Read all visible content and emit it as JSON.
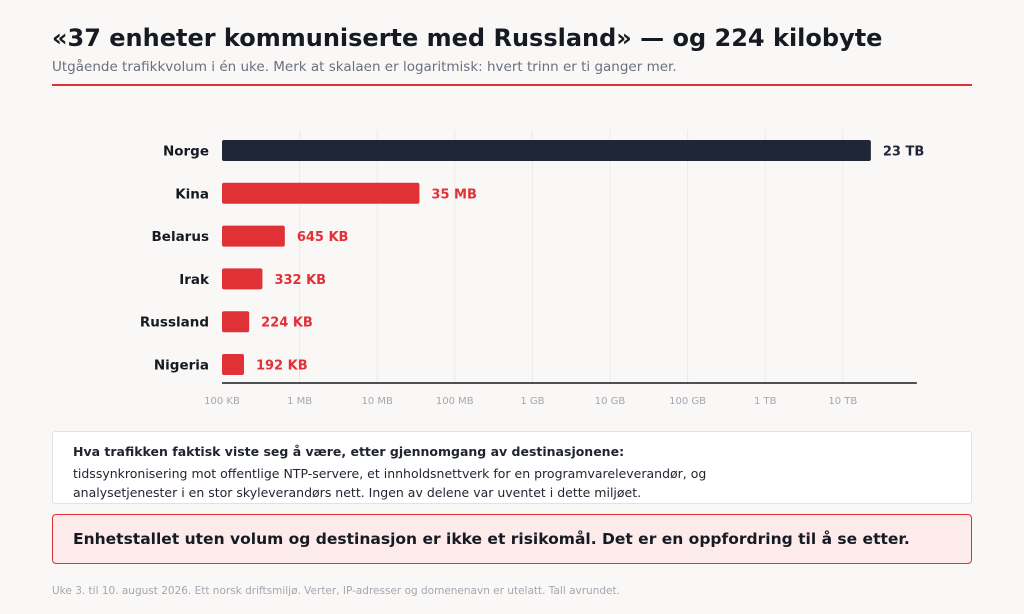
{
  "header": {
    "title": "«37 enheter kommuniserte med Russland» — og 224 kilobyte",
    "subtitle": "Utgående trafikkvolum i én uke. Merk at skalaen er logaritmisk: hvert trinn er ti ganger mer."
  },
  "chart_data": {
    "type": "bar",
    "orientation": "horizontal",
    "x_scale": "log",
    "unit": "bytes",
    "categories": [
      "Norge",
      "Kina",
      "Belarus",
      "Irak",
      "Russland",
      "Nigeria"
    ],
    "values": [
      23000000000000,
      35000000,
      645000,
      332000,
      224000,
      192000
    ],
    "value_labels": [
      "23 TB",
      "35 MB",
      "645 KB",
      "332 KB",
      "224 KB",
      "192 KB"
    ],
    "bar_colors": [
      "#1f2636",
      "#e03137",
      "#e03137",
      "#e03137",
      "#e03137",
      "#e03137"
    ],
    "label_colors": [
      "#1f2636",
      "#e03137",
      "#e03137",
      "#e03137",
      "#e03137",
      "#e03137"
    ],
    "ticks": [
      {
        "value": 100000,
        "label": "100 KB"
      },
      {
        "value": 1000000,
        "label": "1 MB"
      },
      {
        "value": 10000000,
        "label": "10 MB"
      },
      {
        "value": 100000000,
        "label": "100 MB"
      },
      {
        "value": 1000000000,
        "label": "1 GB"
      },
      {
        "value": 10000000000,
        "label": "10 GB"
      },
      {
        "value": 100000000000,
        "label": "100 GB"
      },
      {
        "value": 1000000000000,
        "label": "1 TB"
      },
      {
        "value": 10000000000000,
        "label": "10 TB"
      }
    ],
    "xlim": [
      100000,
      90000000000000
    ],
    "grid": true
  },
  "note": {
    "heading": "Hva trafikken faktisk viste seg å være, etter gjennomgang av destinasjonene:",
    "text": "tidssynkronisering mot offentlige NTP-servere, et innholdsnettverk for en programvareleverandør, og analysetjenester i en stor skyleverandørs nett. Ingen av delene var uventet i dette miljøet."
  },
  "callout": {
    "text": "Enhetstallet uten volum og destinasjon er ikke et risikomål. Det er en oppfordring til å se etter."
  },
  "footnote": "Uke 3. til 10. august 2026. Ett norsk driftsmiljø. Verter, IP-adresser og domenenavn er utelatt. Tall avrundet."
}
